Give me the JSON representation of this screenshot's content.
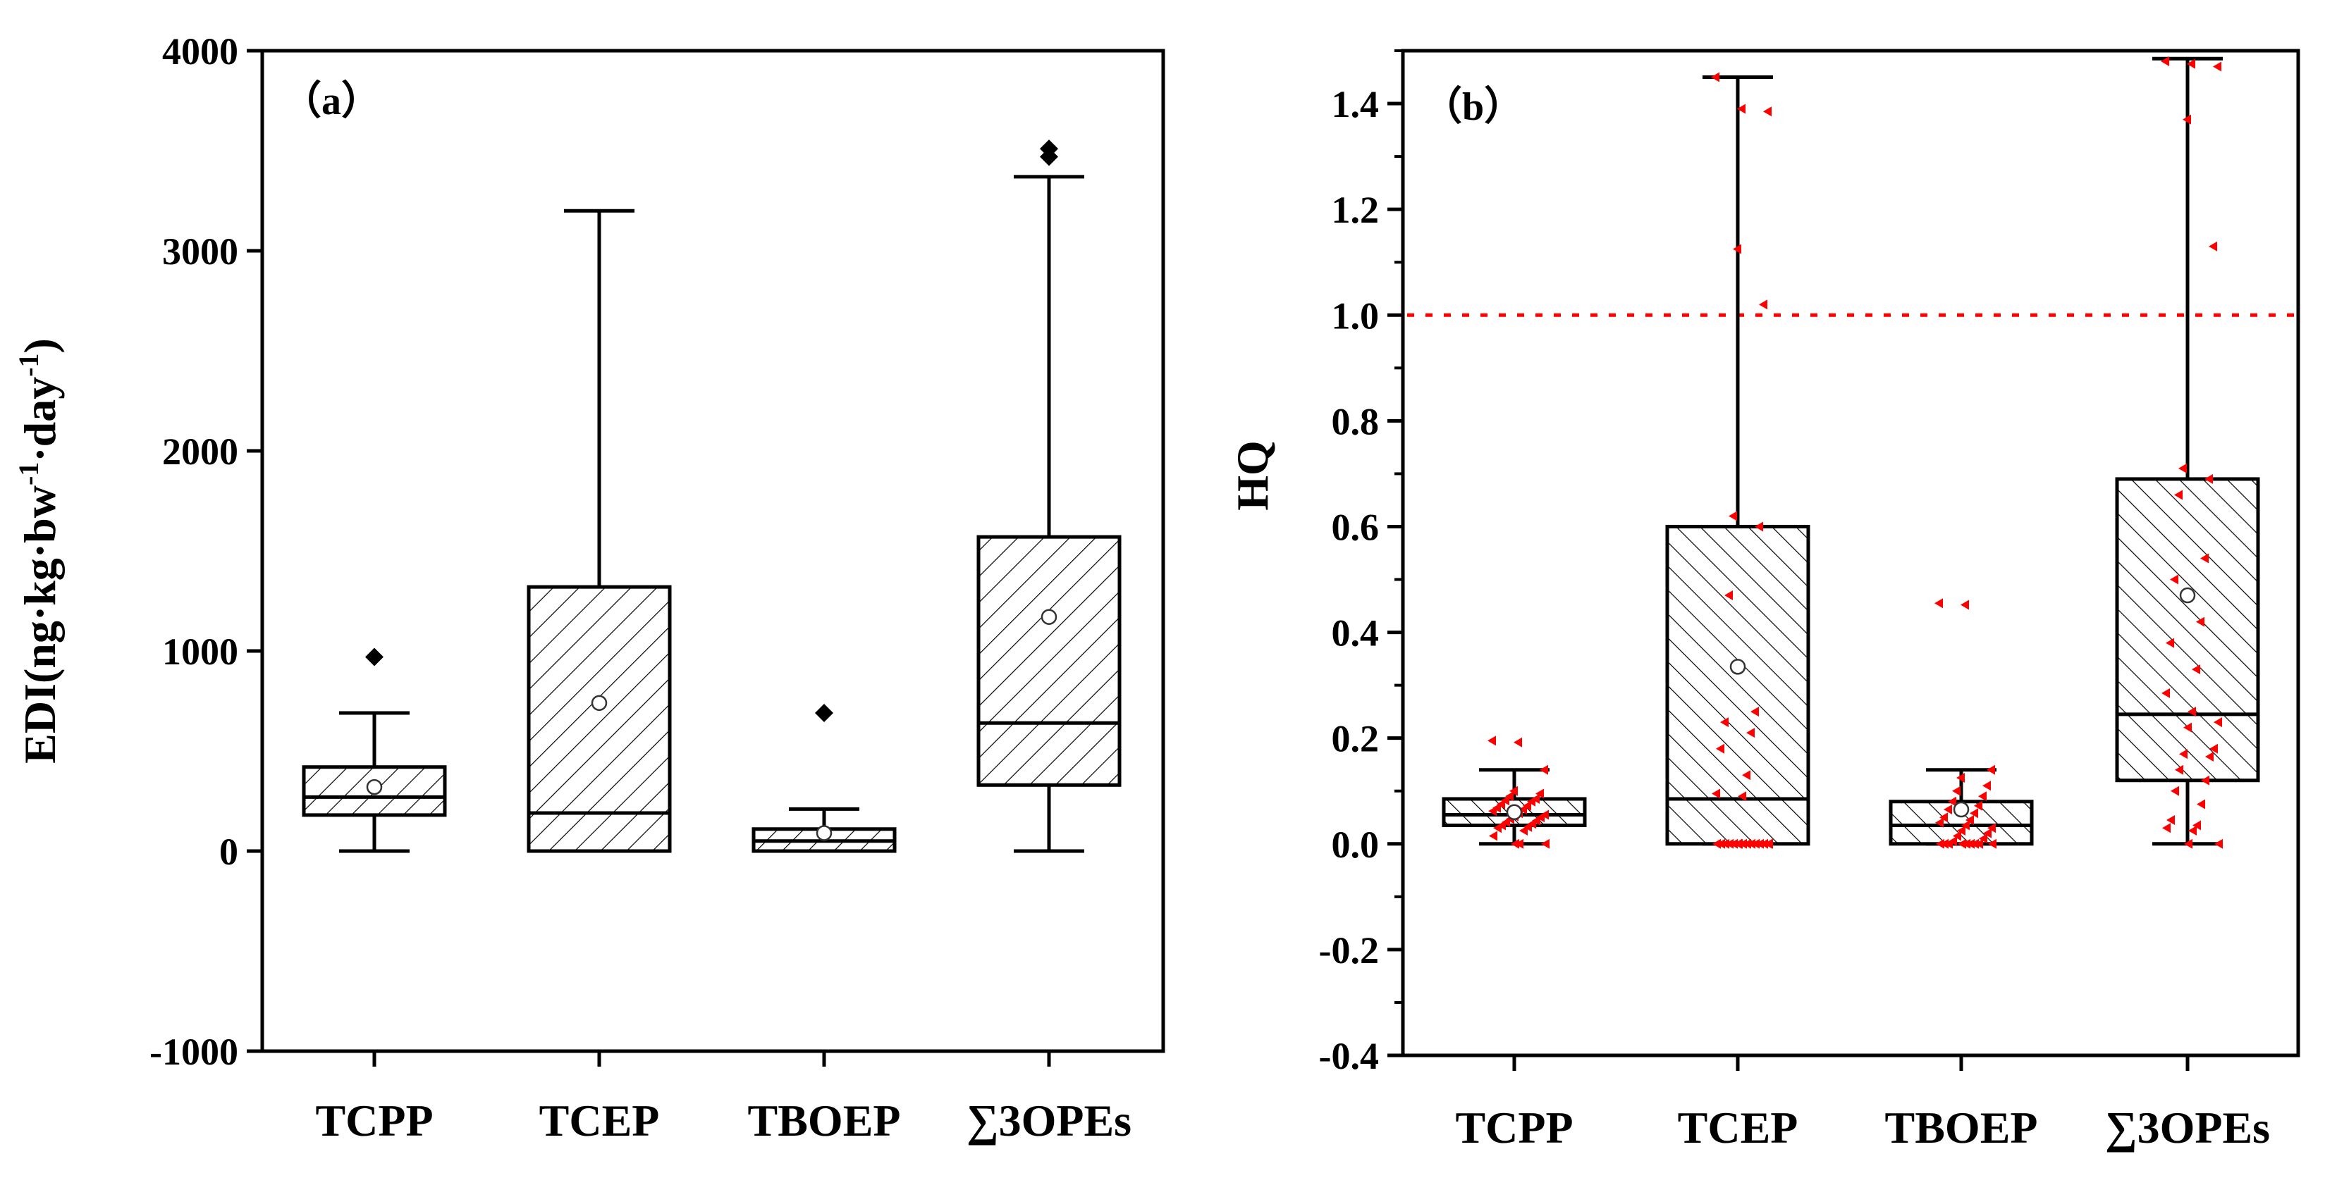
{
  "colors": {
    "axis": "#000000",
    "box_fill": "#ffffff",
    "hatch": "#000000",
    "jitter": "#ff0000",
    "threshold": "#ff0000"
  },
  "chart_data": [
    {
      "type": "box",
      "panel_label": "（a）",
      "title": "",
      "xlabel": "",
      "ylabel": "EDI(ng·kg·bw",
      "ylabel_sup1": "-1",
      "ylabel_mid": "·day",
      "ylabel_sup2": "-1",
      "ylabel_end": ")",
      "ylim": [
        -1000,
        4000
      ],
      "yticks": [
        -1000,
        0,
        1000,
        2000,
        3000,
        4000
      ],
      "ytick_labels": [
        "-1000",
        "0",
        "1000",
        "2000",
        "3000",
        "4000"
      ],
      "categories": [
        "TCPP",
        "TCEP",
        "TBOEP",
        "∑3OPEs"
      ],
      "boxes": [
        {
          "name": "TCPP",
          "whisker_low": 0,
          "q1": 180,
          "median": 270,
          "q3": 420,
          "whisker_high": 690,
          "mean": 320,
          "outliers": [
            970
          ]
        },
        {
          "name": "TCEP",
          "whisker_low": 0,
          "q1": 0,
          "median": 190,
          "q3": 1320,
          "whisker_high": 3200,
          "mean": 740,
          "outliers": []
        },
        {
          "name": "TBOEP",
          "whisker_low": 0,
          "q1": 0,
          "median": 50,
          "q3": 110,
          "whisker_high": 210,
          "mean": 90,
          "outliers": [
            690
          ]
        },
        {
          "name": "∑3OPEs",
          "whisker_low": 0,
          "q1": 330,
          "median": 640,
          "q3": 1570,
          "whisker_high": 3370,
          "mean": 1170,
          "outliers": [
            3470,
            3510
          ]
        }
      ]
    },
    {
      "type": "box",
      "panel_label": "（b）",
      "title": "",
      "xlabel": "",
      "ylabel": "HQ",
      "ylim": [
        -0.4,
        1.5
      ],
      "yticks": [
        -0.4,
        -0.2,
        0.0,
        0.2,
        0.4,
        0.6,
        0.8,
        1.0,
        1.2,
        1.4
      ],
      "ytick_labels": [
        "-0.4",
        "-0.2",
        "0.0",
        "0.2",
        "0.4",
        "0.6",
        "0.8",
        "1.0",
        "1.2",
        "1.4"
      ],
      "threshold": 1.0,
      "categories": [
        "TCPP",
        "TCEP",
        "TBOEP",
        "∑3OPEs"
      ],
      "boxes": [
        {
          "name": "TCPP",
          "whisker_low": 0.0,
          "q1": 0.035,
          "median": 0.055,
          "q3": 0.085,
          "whisker_high": 0.14,
          "mean": 0.06,
          "points": [
            0.195,
            0.192,
            0.14,
            0.1,
            0.095,
            0.09,
            0.085,
            0.082,
            0.08,
            0.075,
            0.072,
            0.068,
            0.065,
            0.062,
            0.058,
            0.055,
            0.052,
            0.05,
            0.047,
            0.044,
            0.041,
            0.038,
            0.035,
            0.032,
            0.03,
            0.025,
            0.015,
            0.0,
            0.0,
            0.0
          ]
        },
        {
          "name": "TCEP",
          "whisker_low": 0.0,
          "q1": 0.0,
          "median": 0.085,
          "q3": 0.6,
          "whisker_high": 1.45,
          "mean": 0.335,
          "points": [
            1.45,
            1.39,
            1.385,
            1.125,
            1.02,
            0.62,
            0.6,
            0.47,
            0.25,
            0.23,
            0.21,
            0.18,
            0.13,
            0.095,
            0.09,
            0.0,
            0.0,
            0.0,
            0.0,
            0.0,
            0.0,
            0.0,
            0.0,
            0.0,
            0.0,
            0.0,
            0.0,
            0.0,
            0.0,
            0.0
          ]
        },
        {
          "name": "TBOEP",
          "whisker_low": 0.0,
          "q1": 0.0,
          "median": 0.035,
          "q3": 0.08,
          "whisker_high": 0.14,
          "mean": 0.065,
          "points": [
            0.455,
            0.452,
            0.14,
            0.125,
            0.11,
            0.1,
            0.09,
            0.08,
            0.072,
            0.065,
            0.058,
            0.05,
            0.045,
            0.04,
            0.035,
            0.03,
            0.025,
            0.02,
            0.015,
            0.01,
            0.005,
            0.0,
            0.0,
            0.0,
            0.0,
            0.0,
            0.0,
            0.0,
            0.0,
            0.0
          ]
        },
        {
          "name": "∑3OPEs",
          "whisker_low": 0.0,
          "q1": 0.12,
          "median": 0.245,
          "q3": 0.69,
          "whisker_high": 1.485,
          "mean": 0.47,
          "points": [
            1.48,
            1.475,
            1.47,
            1.37,
            1.13,
            0.71,
            0.69,
            0.66,
            0.54,
            0.5,
            0.42,
            0.38,
            0.33,
            0.285,
            0.25,
            0.23,
            0.22,
            0.18,
            0.17,
            0.165,
            0.14,
            0.12,
            0.1,
            0.075,
            0.045,
            0.035,
            0.03,
            0.025,
            0.0,
            0.0
          ]
        }
      ]
    }
  ]
}
